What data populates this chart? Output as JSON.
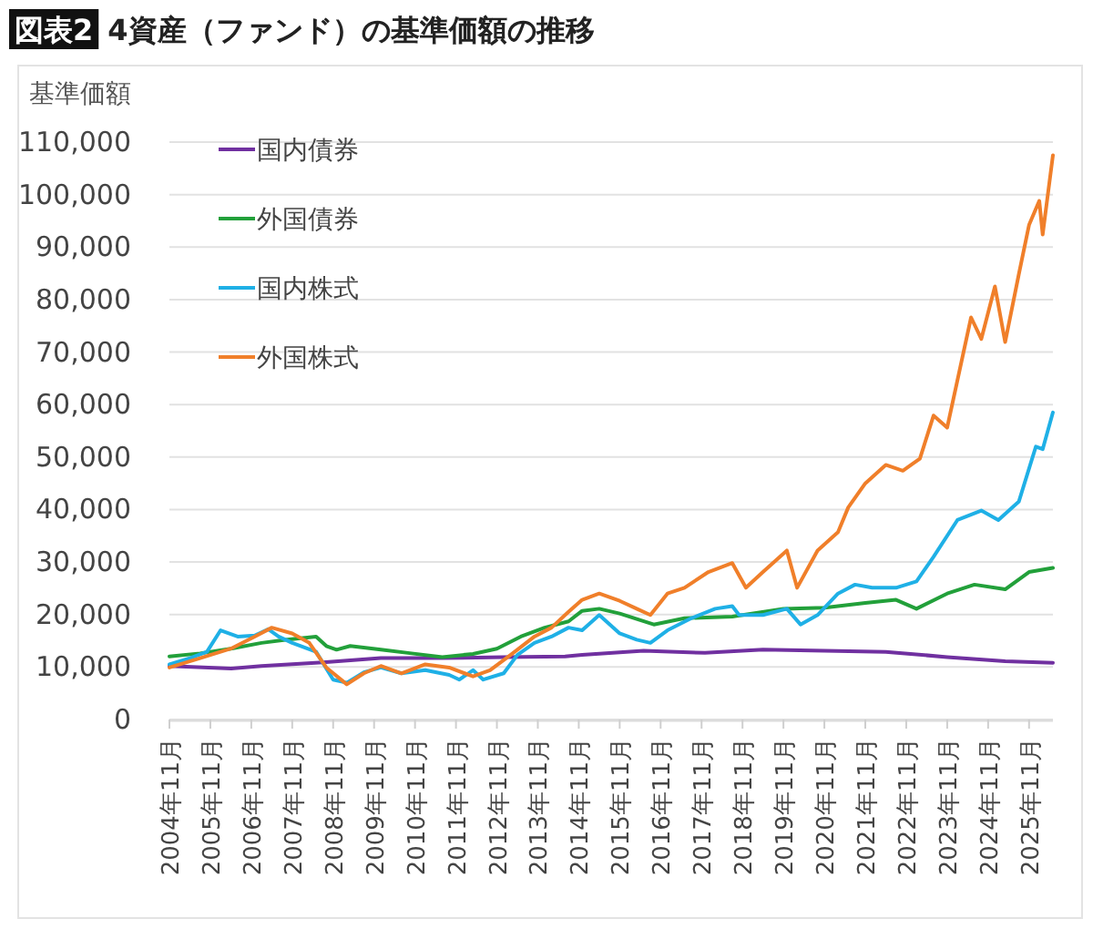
{
  "chart_data": {
    "type": "line",
    "title": "図表2 4資産（ファンド）の基準価額の推移",
    "ylabel": "基準価額",
    "xlim": [
      "2004-11",
      "2026-06"
    ],
    "xticks": [
      {
        "value": "2004-11",
        "label": "2004年11月"
      },
      {
        "value": "2005-11",
        "label": "2005年11月"
      },
      {
        "value": "2006-11",
        "label": "2006年11月"
      },
      {
        "value": "2007-11",
        "label": "2007年11月"
      },
      {
        "value": "2008-11",
        "label": "2008年11月"
      },
      {
        "value": "2009-11",
        "label": "2009年11月"
      },
      {
        "value": "2010-11",
        "label": "2010年11月"
      },
      {
        "value": "2011-11",
        "label": "2011年11月"
      },
      {
        "value": "2012-11",
        "label": "2012年11月"
      },
      {
        "value": "2013-11",
        "label": "2013年11月"
      },
      {
        "value": "2014-11",
        "label": "2014年11月"
      },
      {
        "value": "2015-11",
        "label": "2015年11月"
      },
      {
        "value": "2016-11",
        "label": "2016年11月"
      },
      {
        "value": "2017-11",
        "label": "2017年11月"
      },
      {
        "value": "2018-11",
        "label": "2018年11月"
      },
      {
        "value": "2019-11",
        "label": "2019年11月"
      },
      {
        "value": "2020-11",
        "label": "2020年11月"
      },
      {
        "value": "2021-11",
        "label": "2021年11月"
      },
      {
        "value": "2022-11",
        "label": "2022年11月"
      },
      {
        "value": "2023-11",
        "label": "2023年11月"
      },
      {
        "value": "2024-11",
        "label": "2024年11月"
      },
      {
        "value": "2025-11",
        "label": "2025年11月"
      }
    ],
    "ylim": [
      0,
      110000
    ],
    "yticks": [
      0,
      {
        "value": 10000,
        "label": "10,000"
      },
      {
        "value": 20000,
        "label": "20,000"
      },
      {
        "value": 30000,
        "label": "30,000"
      },
      {
        "value": 40000,
        "label": "40,000"
      },
      {
        "value": 50000,
        "label": "50,000"
      },
      {
        "value": 60000,
        "label": "60,000"
      },
      {
        "value": 70000,
        "label": "70,000"
      },
      {
        "value": 80000,
        "label": "80,000"
      },
      {
        "value": 90000,
        "label": "90,000"
      },
      {
        "value": 100000,
        "label": "100,000"
      },
      {
        "value": 110000,
        "label": "110,000"
      }
    ],
    "grid": "y",
    "legend": "top left",
    "marker": "none",
    "line_style": "solid",
    "series": [
      {
        "name": "国内債券",
        "color": "#7030a0",
        "x": [
          "2004-11",
          "2006-05",
          "2007-02",
          "2008-08",
          "2010-01",
          "2011-07",
          "2013-01",
          "2014-07",
          "2014-12",
          "2016-06",
          "2017-12",
          "2019-05",
          "2020-11",
          "2022-05",
          "2023-11",
          "2025-04",
          "2026-06"
        ],
        "values": [
          10200,
          9700,
          10200,
          10900,
          11700,
          11700,
          11900,
          12000,
          12300,
          13100,
          12700,
          13300,
          13100,
          12900,
          11900,
          11100,
          10800
        ]
      },
      {
        "name": "外国債券",
        "color": "#22a03a",
        "x": [
          "2004-11",
          "2005-08",
          "2006-05",
          "2007-02",
          "2007-09",
          "2008-06",
          "2008-09",
          "2008-12",
          "2009-04",
          "2010-01",
          "2010-10",
          "2011-07",
          "2012-04",
          "2012-11",
          "2013-06",
          "2014-01",
          "2014-08",
          "2014-12",
          "2015-05",
          "2015-11",
          "2016-09",
          "2017-06",
          "2018-08",
          "2019-11",
          "2020-11",
          "2021-11",
          "2022-08",
          "2023-02",
          "2023-11",
          "2024-07",
          "2025-04",
          "2025-11",
          "2026-06"
        ],
        "values": [
          12000,
          12600,
          13500,
          14600,
          15200,
          15800,
          14000,
          13300,
          14000,
          13300,
          12600,
          11900,
          12500,
          13500,
          15800,
          17500,
          18700,
          20700,
          21100,
          20200,
          18100,
          19300,
          19600,
          21100,
          21300,
          22200,
          22800,
          21100,
          24000,
          25700,
          24800,
          28100,
          28900
        ]
      },
      {
        "name": "国内株式",
        "color": "#1fb0e6",
        "x": [
          "2004-11",
          "2005-05",
          "2005-10",
          "2006-02",
          "2006-07",
          "2006-12",
          "2007-04",
          "2007-07",
          "2007-11",
          "2008-06",
          "2008-11",
          "2009-03",
          "2009-08",
          "2010-01",
          "2010-07",
          "2011-02",
          "2011-09",
          "2011-12",
          "2012-04",
          "2012-07",
          "2013-01",
          "2013-05",
          "2013-10",
          "2014-03",
          "2014-08",
          "2014-12",
          "2015-05",
          "2015-11",
          "2016-04",
          "2016-08",
          "2017-01",
          "2017-08",
          "2018-03",
          "2018-08",
          "2018-10",
          "2019-05",
          "2019-12",
          "2020-04",
          "2020-09",
          "2021-03",
          "2021-08",
          "2022-01",
          "2022-08",
          "2023-02",
          "2023-07",
          "2024-02",
          "2024-09",
          "2025-02",
          "2025-08",
          "2026-01",
          "2026-03",
          "2026-06"
        ],
        "values": [
          10500,
          11700,
          12900,
          17000,
          15800,
          16000,
          17200,
          15800,
          14600,
          12900,
          7600,
          7000,
          9000,
          9900,
          8800,
          9400,
          8500,
          7600,
          9400,
          7600,
          8800,
          12300,
          14600,
          15800,
          17500,
          17000,
          19900,
          16400,
          15200,
          14600,
          17000,
          19300,
          21100,
          21600,
          19900,
          19900,
          21100,
          18100,
          19900,
          24000,
          25700,
          25100,
          25100,
          26300,
          31000,
          38000,
          39800,
          38000,
          41500,
          52000,
          51500,
          58500
        ]
      },
      {
        "name": "外国株式",
        "color": "#f07f2a",
        "x": [
          "2004-11",
          "2005-08",
          "2006-05",
          "2006-12",
          "2007-05",
          "2007-11",
          "2008-04",
          "2008-09",
          "2009-03",
          "2009-08",
          "2010-01",
          "2010-07",
          "2011-02",
          "2011-09",
          "2012-04",
          "2012-09",
          "2013-03",
          "2013-10",
          "2014-03",
          "2014-08",
          "2014-12",
          "2015-05",
          "2015-11",
          "2016-04",
          "2016-08",
          "2017-01",
          "2017-06",
          "2018-01",
          "2018-08",
          "2018-12",
          "2019-05",
          "2019-12",
          "2020-03",
          "2020-09",
          "2021-03",
          "2021-06",
          "2021-11",
          "2022-05",
          "2022-10",
          "2023-03",
          "2023-07",
          "2023-11",
          "2024-06",
          "2024-09",
          "2025-01",
          "2025-04",
          "2025-08",
          "2025-11",
          "2026-02",
          "2026-03",
          "2026-06"
        ],
        "values": [
          9900,
          11700,
          13500,
          15800,
          17500,
          16400,
          14600,
          9900,
          6700,
          8800,
          10200,
          8800,
          10500,
          9900,
          8200,
          9400,
          12300,
          15800,
          17500,
          20500,
          22800,
          24000,
          22600,
          21100,
          19900,
          24000,
          25100,
          28100,
          29800,
          25100,
          28100,
          32200,
          25100,
          32200,
          35700,
          40400,
          45000,
          48500,
          47400,
          49700,
          57900,
          55600,
          76600,
          72500,
          82500,
          71900,
          84800,
          94200,
          98800,
          92400,
          107500
        ]
      }
    ]
  }
}
